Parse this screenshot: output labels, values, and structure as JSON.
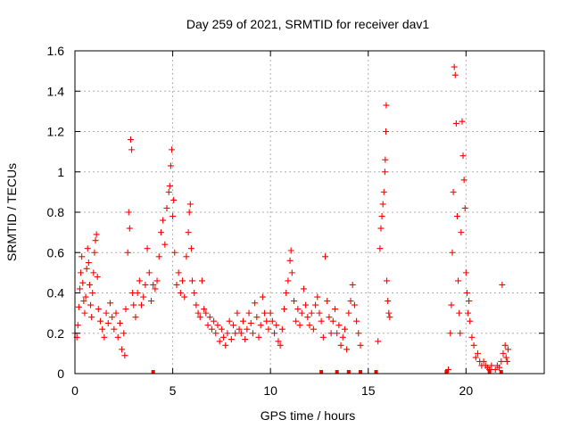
{
  "chart_data": {
    "type": "scatter",
    "title": "Day 259 of 2021, SRMTID for receiver dav1",
    "xlabel": "GPS time / hours",
    "ylabel": "SRMTID / TECUs",
    "xlim": [
      0,
      24
    ],
    "ylim": [
      0,
      1.6
    ],
    "xticks": [
      0,
      5,
      10,
      15,
      20
    ],
    "xtick_labels": [
      "0",
      "5",
      "10",
      "15",
      "20"
    ],
    "yticks": [
      0,
      0.2,
      0.4,
      0.6,
      0.8,
      1,
      1.2,
      1.4,
      1.6
    ],
    "ytick_labels": [
      "0",
      "0.2",
      "0.4",
      "0.6",
      "0.8",
      "1",
      "1.2",
      "1.4",
      "1.6"
    ],
    "grid": true,
    "marker": "plus",
    "color": "#ff0000",
    "series": [
      {
        "name": "dav1",
        "points": [
          [
            0.0,
            0.2
          ],
          [
            0.1,
            0.18
          ],
          [
            0.15,
            0.24
          ],
          [
            0.2,
            0.33
          ],
          [
            0.25,
            0.42
          ],
          [
            0.3,
            0.5
          ],
          [
            0.35,
            0.58
          ],
          [
            0.4,
            0.45
          ],
          [
            0.45,
            0.36
          ],
          [
            0.5,
            0.3
          ],
          [
            0.55,
            0.38
          ],
          [
            0.6,
            0.52
          ],
          [
            0.65,
            0.62
          ],
          [
            0.7,
            0.55
          ],
          [
            0.75,
            0.44
          ],
          [
            0.8,
            0.34
          ],
          [
            0.85,
            0.28
          ],
          [
            0.9,
            0.4
          ],
          [
            0.95,
            0.5
          ],
          [
            1.0,
            0.6
          ],
          [
            1.05,
            0.66
          ],
          [
            1.1,
            0.69
          ],
          [
            1.15,
            0.48
          ],
          [
            1.2,
            0.32
          ],
          [
            1.3,
            0.26
          ],
          [
            1.4,
            0.22
          ],
          [
            1.5,
            0.18
          ],
          [
            1.6,
            0.3
          ],
          [
            1.7,
            0.25
          ],
          [
            1.8,
            0.35
          ],
          [
            1.9,
            0.28
          ],
          [
            2.0,
            0.22
          ],
          [
            2.1,
            0.3
          ],
          [
            2.2,
            0.18
          ],
          [
            2.3,
            0.25
          ],
          [
            2.4,
            0.12
          ],
          [
            2.5,
            0.2
          ],
          [
            2.55,
            0.09
          ],
          [
            2.6,
            0.32
          ],
          [
            2.7,
            0.6
          ],
          [
            2.75,
            0.8
          ],
          [
            2.8,
            0.72
          ],
          [
            2.85,
            1.16
          ],
          [
            2.9,
            1.11
          ],
          [
            2.95,
            0.4
          ],
          [
            3.0,
            0.34
          ],
          [
            3.1,
            0.28
          ],
          [
            3.2,
            0.4
          ],
          [
            3.3,
            0.46
          ],
          [
            3.4,
            0.34
          ],
          [
            3.5,
            0.38
          ],
          [
            3.6,
            0.44
          ],
          [
            3.7,
            0.62
          ],
          [
            3.8,
            0.5
          ],
          [
            3.9,
            0.36
          ],
          [
            4.0,
            0.44
          ],
          [
            4.1,
            0.42
          ],
          [
            4.2,
            0.46
          ],
          [
            4.3,
            0.58
          ],
          [
            4.4,
            0.7
          ],
          [
            4.5,
            0.76
          ],
          [
            4.6,
            0.64
          ],
          [
            4.7,
            0.82
          ],
          [
            4.8,
            0.9
          ],
          [
            4.85,
            0.93
          ],
          [
            4.9,
            1.03
          ],
          [
            4.95,
            1.11
          ],
          [
            5.0,
            0.78
          ],
          [
            5.05,
            0.86
          ],
          [
            5.1,
            0.6
          ],
          [
            5.2,
            0.44
          ],
          [
            5.3,
            0.5
          ],
          [
            5.4,
            0.4
          ],
          [
            5.5,
            0.46
          ],
          [
            5.6,
            0.38
          ],
          [
            5.7,
            0.58
          ],
          [
            5.8,
            0.7
          ],
          [
            5.85,
            0.8
          ],
          [
            5.9,
            0.84
          ],
          [
            5.95,
            0.62
          ],
          [
            6.0,
            0.46
          ],
          [
            6.1,
            0.4
          ],
          [
            6.2,
            0.34
          ],
          [
            6.3,
            0.3
          ],
          [
            6.4,
            0.28
          ],
          [
            6.5,
            0.46
          ],
          [
            6.6,
            0.32
          ],
          [
            6.7,
            0.3
          ],
          [
            6.8,
            0.24
          ],
          [
            6.9,
            0.28
          ],
          [
            7.0,
            0.22
          ],
          [
            7.1,
            0.26
          ],
          [
            7.2,
            0.2
          ],
          [
            7.3,
            0.24
          ],
          [
            7.4,
            0.16
          ],
          [
            7.5,
            0.22
          ],
          [
            7.6,
            0.18
          ],
          [
            7.7,
            0.14
          ],
          [
            7.8,
            0.2
          ],
          [
            7.9,
            0.26
          ],
          [
            8.0,
            0.17
          ],
          [
            8.1,
            0.24
          ],
          [
            8.2,
            0.2
          ],
          [
            8.3,
            0.3
          ],
          [
            8.4,
            0.22
          ],
          [
            8.5,
            0.2
          ],
          [
            8.6,
            0.26
          ],
          [
            8.7,
            0.17
          ],
          [
            8.8,
            0.22
          ],
          [
            8.9,
            0.3
          ],
          [
            9.0,
            0.25
          ],
          [
            9.1,
            0.2
          ],
          [
            9.2,
            0.35
          ],
          [
            9.3,
            0.28
          ],
          [
            9.4,
            0.18
          ],
          [
            9.5,
            0.24
          ],
          [
            9.6,
            0.38
          ],
          [
            9.7,
            0.3
          ],
          [
            9.8,
            0.26
          ],
          [
            9.9,
            0.22
          ],
          [
            10.0,
            0.3
          ],
          [
            10.1,
            0.26
          ],
          [
            10.2,
            0.2
          ],
          [
            10.3,
            0.24
          ],
          [
            10.4,
            0.16
          ],
          [
            10.5,
            0.14
          ],
          [
            10.6,
            0.22
          ],
          [
            10.7,
            0.32
          ],
          [
            10.8,
            0.4
          ],
          [
            10.9,
            0.46
          ],
          [
            11.0,
            0.56
          ],
          [
            11.05,
            0.61
          ],
          [
            11.1,
            0.5
          ],
          [
            11.2,
            0.36
          ],
          [
            11.3,
            0.26
          ],
          [
            11.4,
            0.32
          ],
          [
            11.5,
            0.24
          ],
          [
            11.6,
            0.3
          ],
          [
            11.7,
            0.42
          ],
          [
            11.8,
            0.34
          ],
          [
            11.9,
            0.28
          ],
          [
            12.0,
            0.24
          ],
          [
            12.1,
            0.3
          ],
          [
            12.2,
            0.22
          ],
          [
            12.3,
            0.34
          ],
          [
            12.4,
            0.38
          ],
          [
            12.5,
            0.3
          ],
          [
            12.6,
            0.26
          ],
          [
            12.7,
            0.18
          ],
          [
            12.8,
            0.58
          ],
          [
            12.9,
            0.36
          ],
          [
            13.0,
            0.28
          ],
          [
            13.1,
            0.2
          ],
          [
            13.2,
            0.26
          ],
          [
            13.3,
            0.32
          ],
          [
            13.4,
            0.2
          ],
          [
            13.5,
            0.24
          ],
          [
            13.6,
            0.14
          ],
          [
            13.7,
            0.18
          ],
          [
            13.8,
            0.22
          ],
          [
            13.9,
            0.12
          ],
          [
            14.0,
            0.3
          ],
          [
            14.1,
            0.36
          ],
          [
            14.2,
            0.44
          ],
          [
            14.3,
            0.34
          ],
          [
            14.4,
            0.26
          ],
          [
            14.5,
            0.2
          ],
          [
            14.6,
            0.14
          ],
          [
            15.5,
            0.16
          ],
          [
            15.6,
            0.62
          ],
          [
            15.65,
            0.72
          ],
          [
            15.7,
            0.78
          ],
          [
            15.75,
            0.84
          ],
          [
            15.8,
            0.9
          ],
          [
            15.85,
            1.0
          ],
          [
            15.87,
            1.06
          ],
          [
            15.9,
            1.2
          ],
          [
            15.92,
            1.33
          ],
          [
            15.95,
            0.46
          ],
          [
            16.0,
            0.36
          ],
          [
            16.05,
            0.3
          ],
          [
            16.1,
            0.28
          ],
          [
            19.1,
            0.02
          ],
          [
            19.2,
            0.2
          ],
          [
            19.25,
            0.34
          ],
          [
            19.3,
            0.6
          ],
          [
            19.35,
            0.9
          ],
          [
            19.4,
            1.52
          ],
          [
            19.45,
            1.48
          ],
          [
            19.5,
            1.24
          ],
          [
            19.55,
            0.78
          ],
          [
            19.6,
            0.46
          ],
          [
            19.65,
            0.3
          ],
          [
            19.7,
            0.2
          ],
          [
            19.75,
            0.7
          ],
          [
            19.8,
            1.25
          ],
          [
            19.85,
            1.08
          ],
          [
            19.9,
            0.96
          ],
          [
            19.95,
            0.82
          ],
          [
            20.0,
            0.5
          ],
          [
            20.05,
            0.4
          ],
          [
            20.1,
            0.3
          ],
          [
            20.15,
            0.36
          ],
          [
            20.2,
            0.26
          ],
          [
            20.3,
            0.18
          ],
          [
            20.4,
            0.14
          ],
          [
            20.5,
            0.08
          ],
          [
            20.6,
            0.1
          ],
          [
            20.7,
            0.06
          ],
          [
            20.8,
            0.04
          ],
          [
            20.9,
            0.06
          ],
          [
            21.0,
            0.04
          ],
          [
            21.1,
            0.03
          ],
          [
            21.2,
            0.02
          ],
          [
            21.3,
            0.04
          ],
          [
            21.5,
            0.02
          ],
          [
            21.6,
            0.04
          ],
          [
            21.7,
            0.03
          ],
          [
            21.8,
            0.06
          ],
          [
            21.85,
            0.44
          ],
          [
            21.9,
            0.1
          ],
          [
            22.0,
            0.14
          ],
          [
            22.05,
            0.08
          ],
          [
            22.1,
            0.06
          ],
          [
            22.15,
            0.12
          ]
        ]
      }
    ],
    "zero_markers_x": [
      4.0,
      12.6,
      13.4,
      14.0,
      14.6,
      15.4,
      19.0,
      21.2,
      21.8
    ]
  }
}
